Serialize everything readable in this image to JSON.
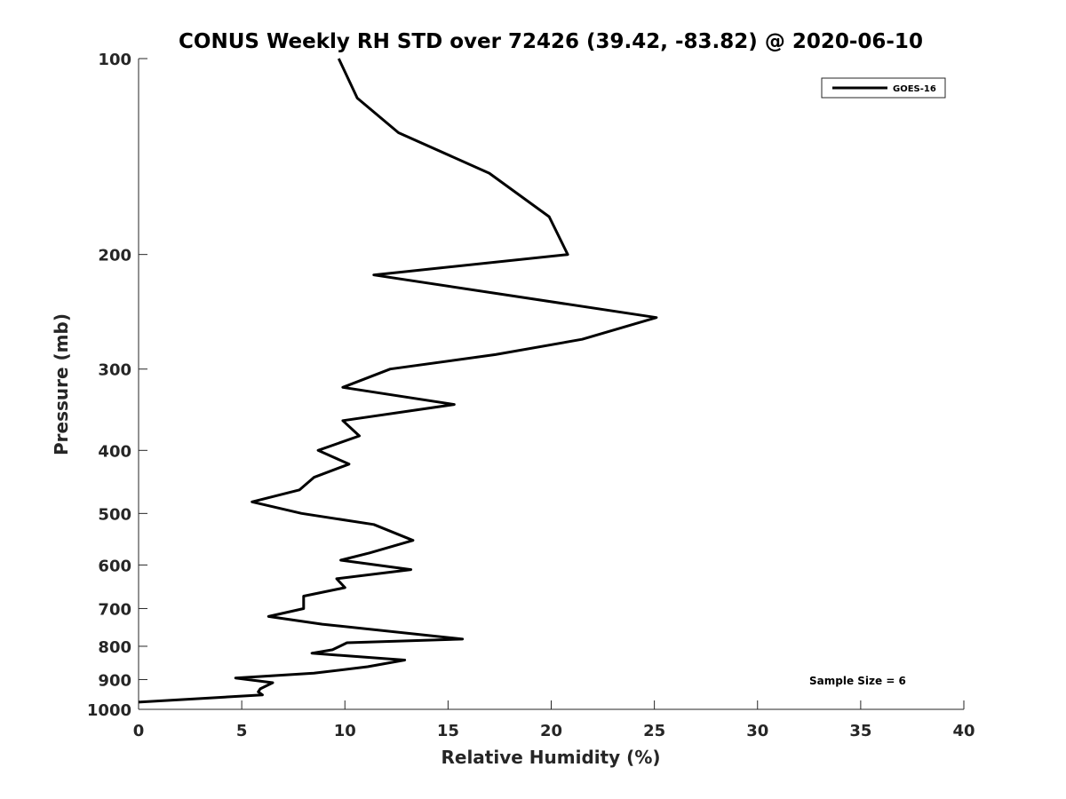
{
  "chart_data": {
    "type": "line",
    "title": "CONUS Weekly RH STD over 72426 (39.42, -83.82) @ 2020-06-10",
    "xlabel": "Relative Humidity (%)",
    "ylabel": "Pressure (mb)",
    "xlim": [
      0,
      40
    ],
    "ylim": [
      100,
      1000
    ],
    "y_scale": "log",
    "y_reversed": true,
    "x_ticks": [
      "0",
      "5",
      "10",
      "15",
      "20",
      "25",
      "30",
      "35",
      "40"
    ],
    "x_tick_values": [
      0,
      5,
      10,
      15,
      20,
      25,
      30,
      35,
      40
    ],
    "y_ticks": [
      "100",
      "200",
      "300",
      "400",
      "500",
      "600",
      "700",
      "800",
      "900",
      "1000"
    ],
    "y_tick_values": [
      100,
      200,
      300,
      400,
      500,
      600,
      700,
      800,
      900,
      1000
    ],
    "grid": false,
    "legend_position": "top-right",
    "series": [
      {
        "name": "GOES-16",
        "color": "#000000",
        "x": [
          9.7,
          10.6,
          12.6,
          17.0,
          19.9,
          20.8,
          11.4,
          25.1,
          21.5,
          17.3,
          12.2,
          9.9,
          15.3,
          9.9,
          10.7,
          8.7,
          10.2,
          8.5,
          7.8,
          5.5,
          7.9,
          11.4,
          13.3,
          11.2,
          9.8,
          13.2,
          9.6,
          10.0,
          8.0,
          8.0,
          6.3,
          8.9,
          15.7,
          10.1,
          9.4,
          8.4,
          12.9,
          11.1,
          8.5,
          4.7,
          6.5,
          5.9,
          5.8,
          6.0,
          0.0
        ],
        "y": [
          100,
          115,
          130,
          150,
          175,
          200,
          215,
          250,
          270,
          285,
          300,
          320,
          340,
          360,
          380,
          400,
          420,
          440,
          460,
          480,
          500,
          520,
          550,
          575,
          590,
          610,
          630,
          650,
          670,
          700,
          720,
          740,
          780,
          790,
          810,
          820,
          840,
          860,
          880,
          895,
          910,
          930,
          940,
          950,
          975
        ]
      }
    ],
    "annotation": "Sample Size = 6"
  }
}
